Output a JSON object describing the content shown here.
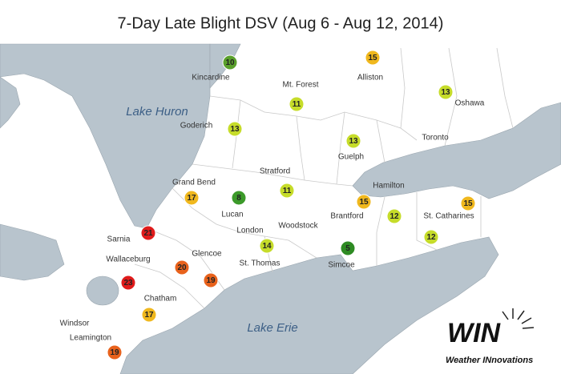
{
  "title": "7-Day Late Blight DSV (Aug 6 - Aug 12, 2014)",
  "markers": [
    {
      "value": 10,
      "color": "#5aa02c"
    },
    {
      "value": 15,
      "color": "#f0b81e"
    },
    {
      "value": 11,
      "color": "#c6dc2a"
    },
    {
      "value": 13,
      "color": "#c6dc2a"
    },
    {
      "value": 13,
      "color": "#c6dc2a"
    },
    {
      "value": 13,
      "color": "#c6dc2a"
    },
    {
      "value": 17,
      "color": "#f0b81e"
    },
    {
      "value": 8,
      "color": "#3c9a2a"
    },
    {
      "value": 11,
      "color": "#c6dc2a"
    },
    {
      "value": 15,
      "color": "#f0b81e"
    },
    {
      "value": 12,
      "color": "#c6dc2a"
    },
    {
      "value": 15,
      "color": "#f0b81e"
    },
    {
      "value": 21,
      "color": "#e01b1b"
    },
    {
      "value": 14,
      "color": "#c6dc2a"
    },
    {
      "value": 5,
      "color": "#2e8b23"
    },
    {
      "value": 12,
      "color": "#c6dc2a"
    },
    {
      "value": 20,
      "color": "#e8621c"
    },
    {
      "value": 19,
      "color": "#e8621c"
    },
    {
      "value": 23,
      "color": "#e01b1b"
    },
    {
      "value": 17,
      "color": "#f0b81e"
    },
    {
      "value": 19,
      "color": "#e8621c"
    }
  ],
  "places": [
    "Kincardine",
    "Mt. Forest",
    "Alliston",
    "Oshawa",
    "Goderich",
    "Toronto",
    "Guelph",
    "Stratford",
    "Hamilton",
    "Grand Bend",
    "Lucan",
    "Woodstock",
    "Brantford",
    "St. Catharines",
    "London",
    "Sarnia",
    "St. Thomas",
    "Simcoe",
    "Wallaceburg",
    "Glencoe",
    "Chatham",
    "Windsor",
    "Leamington"
  ],
  "lakes": [
    "Lake Huron",
    "Lake Erie"
  ],
  "logo": {
    "name": "WIN",
    "tagline": "Weather INnovations"
  }
}
